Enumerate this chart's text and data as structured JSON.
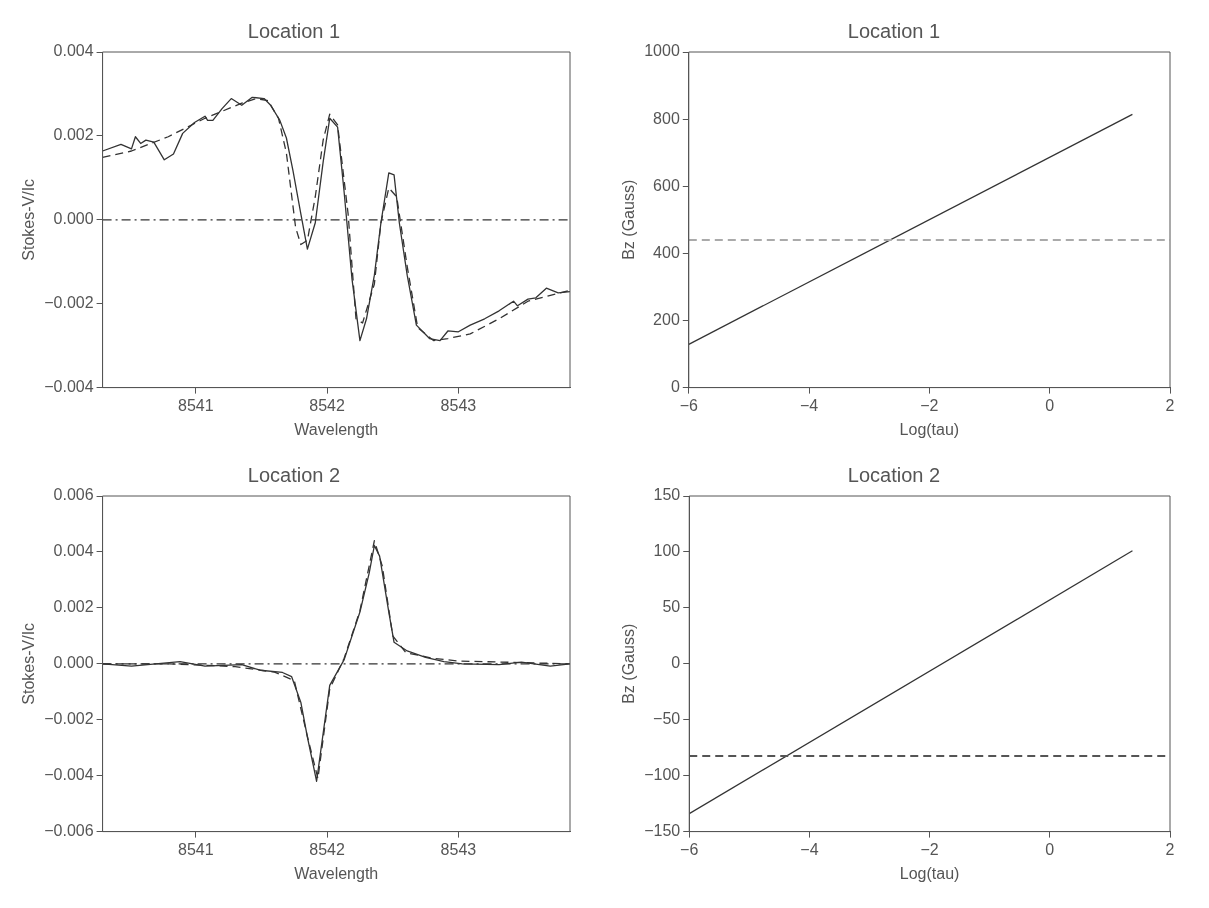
{
  "chart_data": [
    {
      "type": "line",
      "title": "Location 1",
      "xlabel": "Wavelength",
      "ylabel": "Stokes-V/Ic",
      "xlim": [
        8540.29,
        8543.85
      ],
      "xticks": [
        8541,
        8542,
        8543
      ],
      "ylim": [
        -0.004,
        0.004
      ],
      "yticks": [
        -0.004,
        -0.002,
        {
          "value": 0,
          "label": "0.000"
        },
        0.002,
        0.004
      ],
      "grid": false,
      "legend": false,
      "marker": "none",
      "series": [
        {
          "color": "#333333",
          "line_style": "solid",
          "x": [
            8540.29,
            8540.43,
            8540.51,
            8540.54,
            8540.58,
            8540.62,
            8540.68,
            8540.76,
            8540.83,
            8540.9,
            8540.99,
            8541.07,
            8541.09,
            8541.13,
            8541.2,
            8541.27,
            8541.35,
            8541.43,
            8541.52,
            8541.57,
            8541.64,
            8541.69,
            8541.74,
            8541.8,
            8541.85,
            8541.91,
            8541.97,
            8542.02,
            8542.08,
            8542.13,
            8542.19,
            8542.25,
            8542.3,
            8542.36,
            8542.41,
            8542.47,
            8542.51,
            8542.55,
            8542.61,
            8542.68,
            8542.78,
            8542.86,
            8542.92,
            8543.0,
            8543.09,
            8543.2,
            8543.31,
            8543.42,
            8543.45,
            8543.53,
            8543.59,
            8543.67,
            8543.76,
            8543.85
          ],
          "values": [
            0.00164,
            0.0018,
            0.00169,
            0.00198,
            0.00182,
            0.0019,
            0.00185,
            0.00143,
            0.00157,
            0.00206,
            0.00232,
            0.00247,
            0.00237,
            0.00237,
            0.00265,
            0.00289,
            0.00273,
            0.00292,
            0.00289,
            0.00273,
            0.00237,
            0.00195,
            0.00117,
            0.00014,
            -0.0007,
            -7e-05,
            0.00138,
            0.00242,
            0.00221,
            0.00065,
            -0.00142,
            -0.00288,
            -0.00236,
            -0.00132,
            -7e-05,
            0.00112,
            0.00107,
            -7e-05,
            -0.00132,
            -0.00251,
            -0.00283,
            -0.00288,
            -0.00265,
            -0.00267,
            -0.00251,
            -0.00236,
            -0.00217,
            -0.00194,
            -0.00205,
            -0.00189,
            -0.00186,
            -0.00163,
            -0.00174,
            -0.00171
          ]
        },
        {
          "color": "#333333",
          "line_style": "dashed",
          "x": [
            8540.29,
            8540.51,
            8540.79,
            8541.07,
            8541.35,
            8541.46,
            8541.55,
            8541.63,
            8541.69,
            8541.76,
            8541.8,
            8541.85,
            8541.91,
            8541.97,
            8542.02,
            8542.08,
            8542.16,
            8542.22,
            8542.27,
            8542.36,
            8542.41,
            8542.47,
            8542.53,
            8542.61,
            8542.69,
            8542.81,
            8542.92,
            8543.09,
            8543.31,
            8543.53,
            8543.85
          ],
          "values": [
            0.00149,
            0.00164,
            0.00198,
            0.00242,
            0.00278,
            0.00289,
            0.00284,
            0.00242,
            0.00159,
            -0.00018,
            -0.00059,
            -0.00049,
            0.00055,
            0.0019,
            0.00252,
            0.00226,
            0.00014,
            -0.00236,
            -0.00246,
            -0.00153,
            -7e-05,
            0.00076,
            0.00055,
            -0.00111,
            -0.00257,
            -0.00288,
            -0.00283,
            -0.00272,
            -0.00236,
            -0.00194,
            -0.00168
          ]
        }
      ],
      "ref_lines": [
        {
          "axis": "y",
          "value": 0,
          "line_style": "dashdot",
          "color": "#333333"
        }
      ]
    },
    {
      "type": "line",
      "title": "Location 1",
      "xlabel": "Log(tau)",
      "ylabel": "Bz (Gauss)",
      "xlim": [
        -6,
        2
      ],
      "xticks": [
        -6,
        -4,
        -2,
        0,
        2
      ],
      "ylim": [
        0,
        1000
      ],
      "yticks": [
        0,
        200,
        400,
        600,
        800,
        1000
      ],
      "grid": false,
      "legend": false,
      "marker": "none",
      "series": [
        {
          "color": "#333333",
          "line_style": "solid",
          "x": [
            -6,
            1.375
          ],
          "values": [
            129,
            814
          ]
        }
      ],
      "ref_lines": [
        {
          "axis": "y",
          "value": 440,
          "line_style": "dashed",
          "color": "#aaaaaa"
        }
      ]
    },
    {
      "type": "line",
      "title": "Location 2",
      "xlabel": "Wavelength",
      "ylabel": "Stokes-V/Ic",
      "xlim": [
        8540.29,
        8543.85
      ],
      "xticks": [
        8541,
        8542,
        8543
      ],
      "ylim": [
        -0.006,
        0.006
      ],
      "yticks": [
        -0.006,
        -0.004,
        -0.002,
        {
          "value": 0,
          "label": "0.000"
        },
        0.002,
        0.004,
        0.006
      ],
      "grid": false,
      "legend": false,
      "marker": "none",
      "series": [
        {
          "color": "#333333",
          "line_style": "solid",
          "x": [
            8540.29,
            8540.51,
            8540.88,
            8541.07,
            8541.35,
            8541.49,
            8541.66,
            8541.73,
            8541.8,
            8541.85,
            8541.92,
            8542.02,
            8542.13,
            8542.25,
            8542.32,
            8542.36,
            8542.4,
            8542.47,
            8542.51,
            8542.61,
            8542.75,
            8542.89,
            8543.03,
            8543.31,
            8543.48,
            8543.7,
            8543.85
          ],
          "values": [
            0,
            -8e-05,
            8e-05,
            -8e-05,
            -3e-05,
            -0.00023,
            -0.00031,
            -0.00046,
            -0.00138,
            -0.00262,
            -0.0042,
            -0.00077,
            0.00015,
            0.00185,
            0.00323,
            0.00423,
            0.00385,
            0.00185,
            0.00077,
            0.00046,
            0.00023,
            8e-05,
            0,
            -3e-05,
            6e-05,
            -8e-05,
            0
          ]
        },
        {
          "color": "#333333",
          "line_style": "dashed",
          "x": [
            8540.29,
            8540.8,
            8541.3,
            8541.6,
            8541.75,
            8541.85,
            8541.93,
            8542.02,
            8542.13,
            8542.25,
            8542.36,
            8542.42,
            8542.5,
            8542.6,
            8542.8,
            8543.0,
            8543.85
          ],
          "values": [
            0,
            0,
            -0.0001,
            -0.0003,
            -0.0006,
            -0.0026,
            -0.0041,
            -0.0009,
            0.0002,
            0.0019,
            0.0044,
            0.0035,
            0.001,
            0.0004,
            0.0002,
            0.0001,
            0
          ]
        }
      ],
      "ref_lines": [
        {
          "axis": "y",
          "value": 0,
          "line_style": "dashdot",
          "color": "#333333"
        }
      ]
    },
    {
      "type": "line",
      "title": "Location 2",
      "xlabel": "Log(tau)",
      "ylabel": "Bz (Gauss)",
      "xlim": [
        -6,
        2
      ],
      "xticks": [
        -6,
        -4,
        -2,
        0,
        2
      ],
      "ylim": [
        -150,
        150
      ],
      "yticks": [
        -150,
        -100,
        -50,
        0,
        50,
        100,
        150
      ],
      "grid": false,
      "legend": false,
      "marker": "none",
      "series": [
        {
          "color": "#333333",
          "line_style": "solid",
          "x": [
            -6,
            1.375
          ],
          "values": [
            -134,
            101
          ]
        }
      ],
      "ref_lines": [
        {
          "axis": "y",
          "value": -82.5,
          "line_style": "dashed",
          "color": "#555555"
        }
      ]
    }
  ]
}
